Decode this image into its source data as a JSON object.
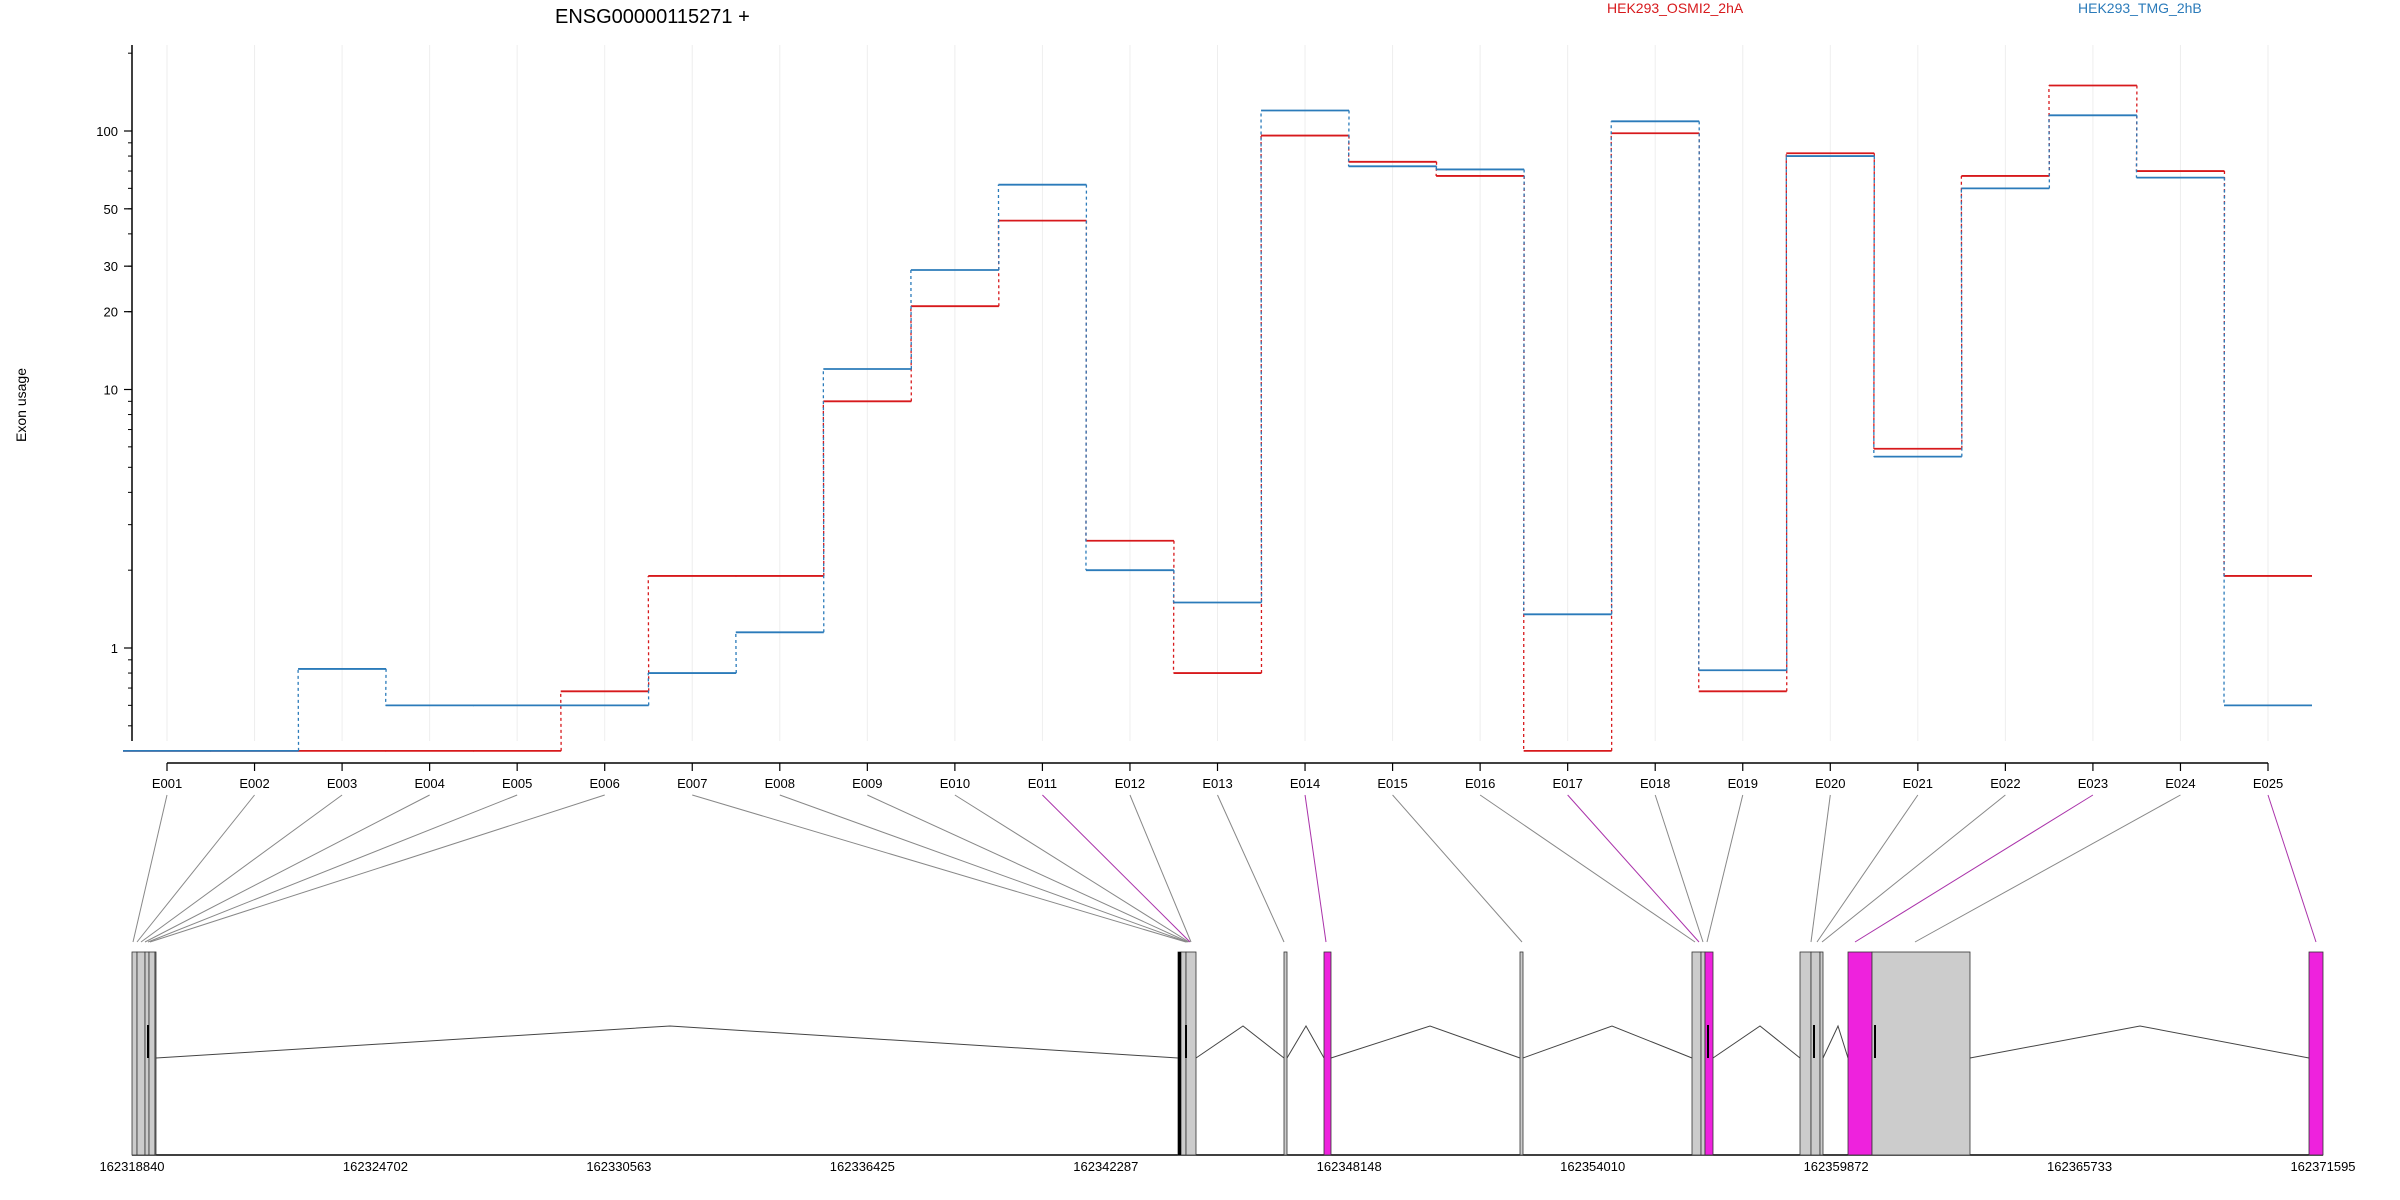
{
  "chart_data": {
    "type": "line",
    "title": "ENSG00000115271 +",
    "ylabel": "Exon usage",
    "y_scale": "log",
    "ylim": [
      0.4,
      200
    ],
    "y_ticks": [
      {
        "value": 1,
        "label": "1"
      },
      {
        "value": 10,
        "label": "10"
      },
      {
        "value": 20,
        "label": "20"
      },
      {
        "value": 30,
        "label": "30"
      },
      {
        "value": 50,
        "label": "50"
      },
      {
        "value": 100,
        "label": "100"
      }
    ],
    "categories": [
      "E001",
      "E002",
      "E003",
      "E004",
      "E005",
      "E006",
      "E007",
      "E008",
      "E009",
      "E010",
      "E011",
      "E012",
      "E013",
      "E014",
      "E015",
      "E016",
      "E017",
      "E018",
      "E019",
      "E020",
      "E021",
      "E022",
      "E023",
      "E024",
      "E025"
    ],
    "series": [
      {
        "name": "HEK293_OSMI2_2hA",
        "color": "#d7191c",
        "values": [
          0.4,
          0.4,
          0.4,
          0.4,
          0.4,
          0.68,
          1.9,
          1.9,
          9,
          21,
          45,
          2.6,
          0.8,
          96,
          76,
          67,
          0.4,
          98,
          0.68,
          82,
          5.9,
          67,
          150,
          70,
          1.9
        ]
      },
      {
        "name": "HEK293_TMG_2hB",
        "color": "#2b7bba",
        "values": [
          0.4,
          0.4,
          0.83,
          0.6,
          0.6,
          0.6,
          0.8,
          1.15,
          12,
          29,
          62,
          2,
          1.5,
          120,
          73,
          71,
          1.35,
          109,
          0.82,
          80,
          5.5,
          60,
          115,
          66,
          0.6
        ]
      }
    ],
    "gene_model": {
      "coordinates": [
        "162318840",
        "162324702",
        "162330563",
        "162336425",
        "162342287",
        "162348148",
        "162354010",
        "162359872",
        "162365733",
        "162371595"
      ],
      "genomic_start": 162318840,
      "genomic_end": 162371595,
      "highlighted_exons": [
        "E011",
        "E014",
        "E017",
        "E023",
        "E025"
      ],
      "exon_color": "#cccccc",
      "highlight_color": "#ee22dd",
      "connector_color": "#888888",
      "highlight_connector_color": "#aa33aa"
    }
  }
}
